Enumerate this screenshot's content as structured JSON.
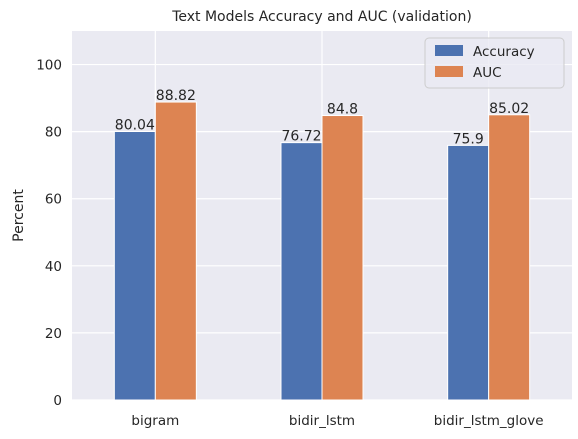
{
  "chart_data": {
    "type": "bar",
    "title": "Text Models Accuracy and AUC (validation)",
    "xlabel": "",
    "ylabel": "Percent",
    "categories": [
      "bigram",
      "bidir_lstm",
      "bidir_lstm_glove"
    ],
    "series": [
      {
        "name": "Accuracy",
        "values": [
          80.04,
          76.72,
          75.9
        ],
        "labels": [
          "80.04",
          "76.72",
          "75.9"
        ],
        "color": "#4c72b0"
      },
      {
        "name": "AUC",
        "values": [
          88.82,
          84.8,
          85.02
        ],
        "labels": [
          "88.82",
          "84.8",
          "85.02"
        ],
        "color": "#dd8452"
      }
    ],
    "ylim": [
      0,
      110
    ],
    "yticks": [
      0,
      20,
      40,
      60,
      80,
      100
    ],
    "ytick_labels": [
      "0",
      "20",
      "40",
      "60",
      "80",
      "100"
    ],
    "grid": true,
    "legend_position": "top-right",
    "background": "#eaeaf2"
  }
}
